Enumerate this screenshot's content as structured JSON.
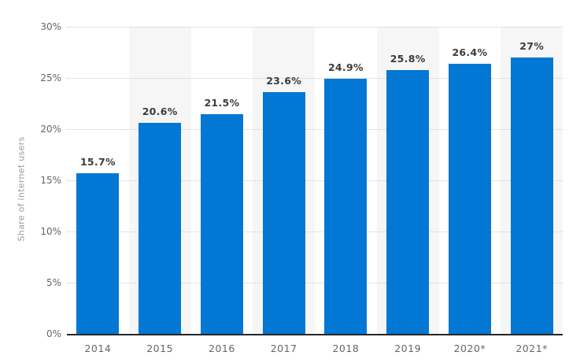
{
  "chart_data": {
    "type": "bar",
    "title": "",
    "categories": [
      "2014",
      "2015",
      "2016",
      "2017",
      "2018",
      "2019",
      "2020*",
      "2021*"
    ],
    "values": [
      15.7,
      20.6,
      21.5,
      23.6,
      24.9,
      25.8,
      26.4,
      27
    ],
    "value_labels": [
      "15.7%",
      "20.6%",
      "21.5%",
      "23.6%",
      "24.9%",
      "25.8%",
      "26.4%",
      "27%"
    ],
    "xlabel": "",
    "ylabel": "Share of internet users",
    "ylim": [
      0,
      30
    ],
    "ytick_step": 5,
    "yticks": [
      0,
      5,
      10,
      15,
      20,
      25,
      30
    ],
    "ytick_labels": [
      "0%",
      "5%",
      "10%",
      "15%",
      "20%",
      "25%",
      "30%"
    ],
    "grid": true,
    "grid_style": "dotted",
    "legend": "none",
    "plot_band_indexes": [
      1,
      3,
      5,
      7
    ],
    "colors": {
      "bar": "#0377d4",
      "plot_band": "#f6f6f6",
      "gridline": "#cccccc",
      "axis_line": "#262626",
      "tick_label": "#666666",
      "value_label": "#3c3c3c",
      "axis_title": "#999999"
    }
  }
}
